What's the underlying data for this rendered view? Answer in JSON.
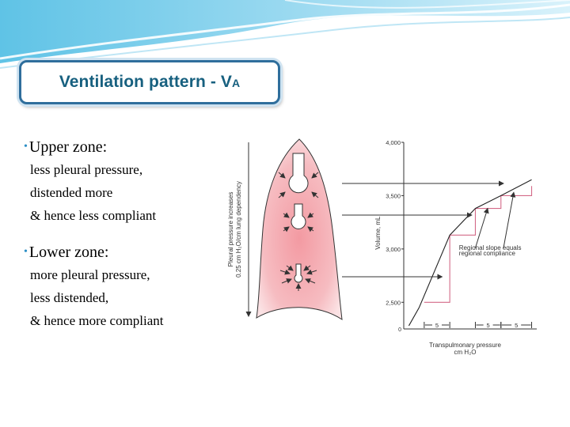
{
  "title": {
    "main": "Ventilation pattern - V",
    "subscript": "A"
  },
  "upper_zone": {
    "heading": "Upper zone:",
    "lines": [
      "less pleural pressure,",
      "distended more",
      "& hence less compliant"
    ]
  },
  "lower_zone": {
    "heading": "Lower zone:",
    "lines": [
      "more pleural pressure,",
      "less distended,",
      "& hence more compliant"
    ]
  },
  "figure": {
    "lung_axis_label_1": "Pleural pressure increases",
    "lung_axis_label_2": "0.25 cm H₂O/cm lung dependency",
    "chart_data": {
      "type": "line",
      "title": "",
      "xlabel": "Transpulmonary pressure",
      "xlabel_unit": "cm H₂O",
      "ylabel": "Volume, mL",
      "y_ticks": [
        "4,000",
        "3,500",
        "3,000",
        "2,500"
      ],
      "y_tick_values": [
        4000,
        3500,
        3000,
        2500
      ],
      "origin_label": "0",
      "ylim": [
        2250,
        4000
      ],
      "interval_labels": [
        "5",
        "5",
        "5"
      ],
      "annotation": [
        "Regional slope equals",
        "regional compliance"
      ],
      "curve": {
        "x": [
          1,
          3,
          9,
          14,
          19,
          25
        ],
        "y": [
          2280,
          2450,
          3130,
          3380,
          3500,
          3650
        ]
      },
      "steps": [
        {
          "x0": 4,
          "x1": 9,
          "y0": 2500,
          "y1": 3130
        },
        {
          "x0": 9,
          "x1": 14,
          "y0": 3130,
          "y1": 3380
        },
        {
          "x0": 14,
          "x1": 19,
          "y0": 3380,
          "y1": 3500
        },
        {
          "x0": 19,
          "x1": 25,
          "y0": 3500,
          "y1": 3590
        }
      ]
    }
  },
  "colors": {
    "accent": "#2f6e9c",
    "title": "#17607f",
    "bullet": "#2c8fc6",
    "step": "#d46a88",
    "lung": "#f2a3a9"
  }
}
